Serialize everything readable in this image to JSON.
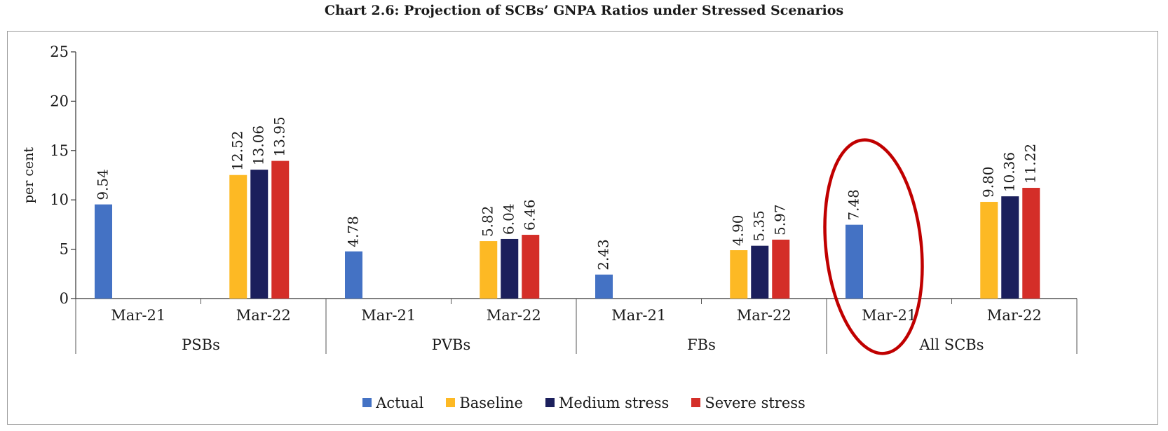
{
  "chart_data": {
    "type": "bar",
    "title": "Chart 2.6: Projection of SCBs’ GNPA Ratios under Stressed Scenarios",
    "ylabel": "per cent",
    "ylim": [
      0,
      25
    ],
    "yticks": [
      0,
      5,
      10,
      15,
      20,
      25
    ],
    "groups": [
      {
        "label": "PSBs",
        "periods": [
          {
            "label": "Mar-21",
            "bars": [
              {
                "series": "Actual",
                "value": 9.54,
                "label": "9.54"
              }
            ]
          },
          {
            "label": "Mar-22",
            "bars": [
              {
                "series": "Baseline",
                "value": 12.52,
                "label": "12.52"
              },
              {
                "series": "Medium stress",
                "value": 13.06,
                "label": "13.06"
              },
              {
                "series": "Severe stress",
                "value": 13.95,
                "label": "13.95"
              }
            ]
          }
        ]
      },
      {
        "label": "PVBs",
        "periods": [
          {
            "label": "Mar-21",
            "bars": [
              {
                "series": "Actual",
                "value": 4.78,
                "label": "4.78"
              }
            ]
          },
          {
            "label": "Mar-22",
            "bars": [
              {
                "series": "Baseline",
                "value": 5.82,
                "label": "5.82"
              },
              {
                "series": "Medium stress",
                "value": 6.04,
                "label": "6.04"
              },
              {
                "series": "Severe stress",
                "value": 6.46,
                "label": "6.46"
              }
            ]
          }
        ]
      },
      {
        "label": "FBs",
        "periods": [
          {
            "label": "Mar-21",
            "bars": [
              {
                "series": "Actual",
                "value": 2.43,
                "label": "2.43"
              }
            ]
          },
          {
            "label": "Mar-22",
            "bars": [
              {
                "series": "Baseline",
                "value": 4.9,
                "label": "4.90"
              },
              {
                "series": "Medium stress",
                "value": 5.35,
                "label": "5.35"
              },
              {
                "series": "Severe stress",
                "value": 5.97,
                "label": "5.97"
              }
            ]
          }
        ]
      },
      {
        "label": "All SCBs",
        "periods": [
          {
            "label": "Mar-21",
            "bars": [
              {
                "series": "Actual",
                "value": 7.48,
                "label": "7.48"
              }
            ]
          },
          {
            "label": "Mar-22",
            "bars": [
              {
                "series": "Baseline",
                "value": 9.8,
                "label": "9.80"
              },
              {
                "series": "Medium stress",
                "value": 10.36,
                "label": "10.36"
              },
              {
                "series": "Severe stress",
                "value": 11.22,
                "label": "11.22"
              }
            ]
          }
        ]
      }
    ],
    "series": [
      {
        "name": "Actual",
        "color": "#4472C4"
      },
      {
        "name": "Baseline",
        "color": "#FDB924"
      },
      {
        "name": "Medium stress",
        "color": "#1B1F5C"
      },
      {
        "name": "Severe stress",
        "color": "#D42E28"
      }
    ],
    "legend_position": "bottom",
    "grid": false,
    "annotation": {
      "shape": "ellipse",
      "color": "#C00000",
      "target": "All SCBs Mar-21 Actual bar"
    }
  }
}
